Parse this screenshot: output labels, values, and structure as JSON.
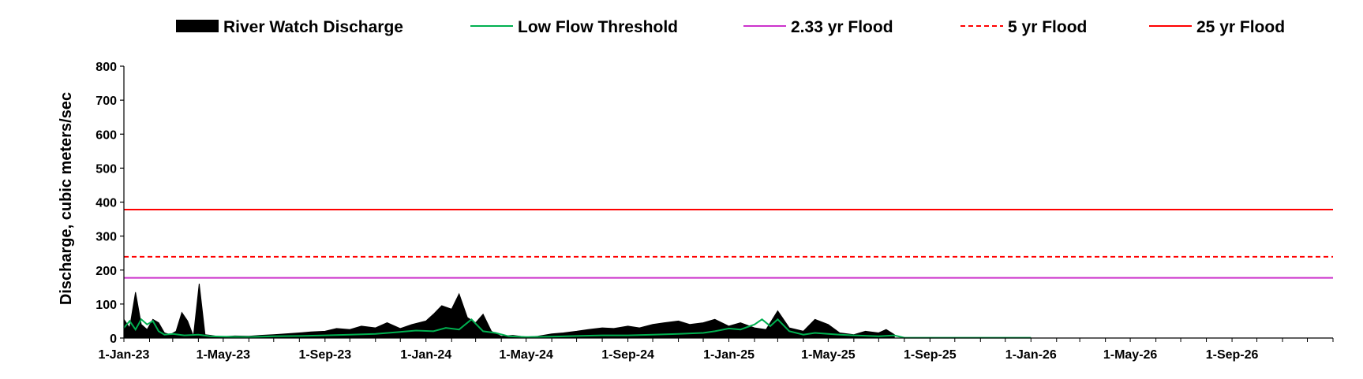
{
  "chart_data": {
    "type": "area",
    "title": "",
    "xlabel": "",
    "ylabel": "Discharge, cubic meters/sec",
    "ylim": [
      0,
      800
    ],
    "y_ticks": [
      0,
      100,
      200,
      300,
      400,
      500,
      600,
      700,
      800
    ],
    "xlim": [
      "2023-01-01",
      "2027-01-01"
    ],
    "x_tick_labels": [
      "1-Jan-23",
      "1-May-23",
      "1-Sep-23",
      "1-Jan-24",
      "1-May-24",
      "1-Sep-24",
      "1-Jan-25",
      "1-May-25",
      "1-Sep-25",
      "1-Jan-26",
      "1-May-26",
      "1-Sep-26"
    ],
    "x_tick_dates": [
      "2023-01-01",
      "2023-05-01",
      "2023-09-01",
      "2024-01-01",
      "2024-05-01",
      "2024-09-01",
      "2025-01-01",
      "2025-05-01",
      "2025-09-01",
      "2026-01-01",
      "2026-05-01",
      "2026-09-01"
    ],
    "grid": false,
    "legend_position": "top",
    "series": [
      {
        "name": "River Watch Discharge",
        "kind": "area",
        "color": "#000000",
        "x": [
          "2023-01-01",
          "2023-01-08",
          "2023-01-15",
          "2023-01-22",
          "2023-01-29",
          "2023-02-05",
          "2023-02-12",
          "2023-02-19",
          "2023-02-26",
          "2023-03-05",
          "2023-03-12",
          "2023-03-19",
          "2023-03-26",
          "2023-04-02",
          "2023-04-09",
          "2023-04-16",
          "2023-04-23",
          "2023-05-01",
          "2023-05-15",
          "2023-06-01",
          "2023-06-15",
          "2023-07-01",
          "2023-07-15",
          "2023-08-01",
          "2023-08-15",
          "2023-09-01",
          "2023-09-15",
          "2023-10-01",
          "2023-10-15",
          "2023-11-01",
          "2023-11-15",
          "2023-12-01",
          "2023-12-15",
          "2024-01-01",
          "2024-01-10",
          "2024-01-20",
          "2024-02-01",
          "2024-02-10",
          "2024-02-20",
          "2024-03-01",
          "2024-03-10",
          "2024-03-20",
          "2024-04-01",
          "2024-04-15",
          "2024-05-01",
          "2024-05-15",
          "2024-06-01",
          "2024-06-15",
          "2024-07-01",
          "2024-07-15",
          "2024-08-01",
          "2024-08-15",
          "2024-09-01",
          "2024-09-15",
          "2024-10-01",
          "2024-10-15",
          "2024-11-01",
          "2024-11-15",
          "2024-12-01",
          "2024-12-15",
          "2025-01-01",
          "2025-01-15",
          "2025-02-01",
          "2025-02-15",
          "2025-03-01",
          "2025-03-15",
          "2025-04-01",
          "2025-04-15",
          "2025-05-01",
          "2025-05-15",
          "2025-06-01",
          "2025-06-15",
          "2025-07-01",
          "2025-07-10",
          "2025-07-20"
        ],
        "values": [
          55,
          30,
          135,
          40,
          25,
          55,
          45,
          15,
          10,
          20,
          75,
          50,
          5,
          160,
          10,
          8,
          5,
          4,
          6,
          5,
          8,
          10,
          12,
          15,
          18,
          20,
          28,
          25,
          35,
          30,
          45,
          28,
          40,
          50,
          70,
          95,
          85,
          130,
          60,
          45,
          70,
          20,
          5,
          8,
          3,
          5,
          12,
          15,
          20,
          25,
          30,
          28,
          35,
          30,
          40,
          45,
          50,
          40,
          45,
          55,
          35,
          45,
          30,
          25,
          80,
          30,
          20,
          55,
          40,
          15,
          10,
          20,
          15,
          25,
          10
        ]
      },
      {
        "name": "Low Flow Threshold",
        "kind": "line",
        "color": "#00b050",
        "x": [
          "2023-01-01",
          "2023-01-08",
          "2023-01-15",
          "2023-01-22",
          "2023-01-29",
          "2023-02-05",
          "2023-02-12",
          "2023-02-19",
          "2023-03-01",
          "2023-03-15",
          "2023-04-01",
          "2023-04-15",
          "2023-05-01",
          "2023-06-01",
          "2023-07-01",
          "2023-08-01",
          "2023-09-01",
          "2023-10-01",
          "2023-11-01",
          "2023-12-01",
          "2023-12-20",
          "2024-01-10",
          "2024-01-25",
          "2024-02-10",
          "2024-02-25",
          "2024-03-10",
          "2024-03-25",
          "2024-04-10",
          "2024-05-01",
          "2024-06-01",
          "2024-07-01",
          "2024-08-01",
          "2024-09-01",
          "2024-10-01",
          "2024-11-01",
          "2024-12-01",
          "2024-12-15",
          "2025-01-01",
          "2025-01-15",
          "2025-02-01",
          "2025-02-10",
          "2025-02-20",
          "2025-03-01",
          "2025-03-15",
          "2025-04-01",
          "2025-04-15",
          "2025-05-01",
          "2025-05-15",
          "2025-06-01",
          "2025-07-01",
          "2025-07-20",
          "2025-08-01",
          "2026-01-01"
        ],
        "values": [
          30,
          50,
          25,
          55,
          40,
          50,
          20,
          10,
          12,
          8,
          10,
          5,
          4,
          3,
          5,
          6,
          8,
          10,
          12,
          18,
          22,
          20,
          30,
          25,
          55,
          20,
          15,
          5,
          3,
          4,
          6,
          8,
          8,
          10,
          12,
          15,
          20,
          28,
          25,
          40,
          55,
          35,
          55,
          20,
          10,
          15,
          12,
          10,
          8,
          5,
          8,
          1,
          1
        ]
      },
      {
        "name": "2.33 yr Flood",
        "kind": "hline",
        "color": "#cc33cc",
        "value": 177
      },
      {
        "name": "5 yr Flood",
        "kind": "hline",
        "color": "#ff0000",
        "dashed": true,
        "value": 239
      },
      {
        "name": "25 yr Flood",
        "kind": "hline",
        "color": "#ff0000",
        "value": 378
      }
    ]
  }
}
